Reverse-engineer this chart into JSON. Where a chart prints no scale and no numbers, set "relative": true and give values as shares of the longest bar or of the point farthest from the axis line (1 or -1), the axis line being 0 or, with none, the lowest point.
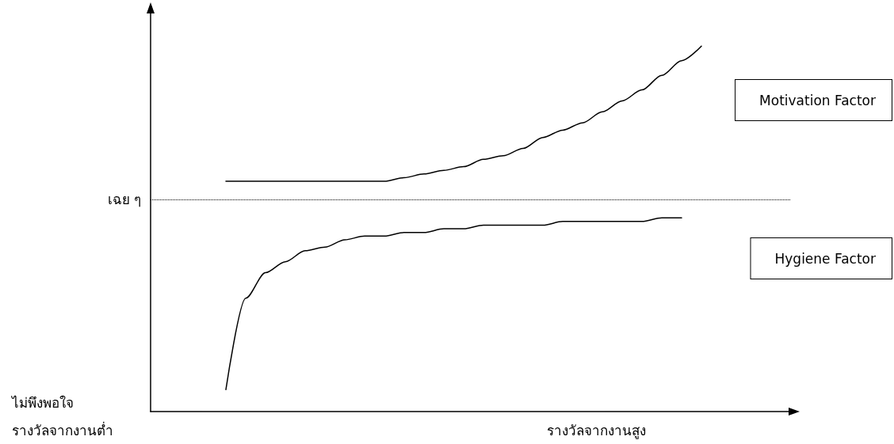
{
  "chart_data": {
    "type": "line",
    "relative": true,
    "annotations": [
      "รางวัลจากงานต่ำ",
      "รางวัลจากงานสูง",
      "ไม่พึงพอใจ"
    ],
    "categories": [
      null,
      null,
      null,
      null,
      null,
      null,
      null,
      null,
      null,
      null,
      null,
      null,
      null,
      null,
      null,
      null,
      null,
      null,
      null,
      null,
      null,
      null,
      null,
      null,
      null
    ],
    "series": [
      {
        "name": "Motivation Factor",
        "color": "#000000",
        "values": [
          0.63,
          0.63,
          0.63,
          0.63,
          0.63,
          0.63,
          0.63,
          0.63,
          0.63,
          0.64,
          0.65,
          0.66,
          0.67,
          0.69,
          0.7,
          0.72,
          0.75,
          0.77,
          0.79,
          0.82,
          0.85,
          0.88,
          0.92,
          0.96,
          1
        ]
      },
      {
        "name": "Hygiene Factor",
        "color": "#000000",
        "values": [
          0.06,
          0.31,
          0.38,
          0.41,
          0.44,
          0.45,
          0.47,
          0.48,
          0.48,
          0.49,
          0.49,
          0.5,
          0.5,
          0.51,
          0.51,
          0.51,
          0.51,
          0.52,
          0.52,
          0.52,
          0.52,
          0.52,
          0.53,
          0.53,
          null
        ]
      }
    ],
    "ref_lines": [
      {
        "axis": "y",
        "value": 0.58,
        "label": "เฉย ๆ",
        "line_style": "dotted",
        "color": "#000000"
      }
    ],
    "marker": "none",
    "line_style": "solid",
    "grid": false,
    "legend": false
  }
}
